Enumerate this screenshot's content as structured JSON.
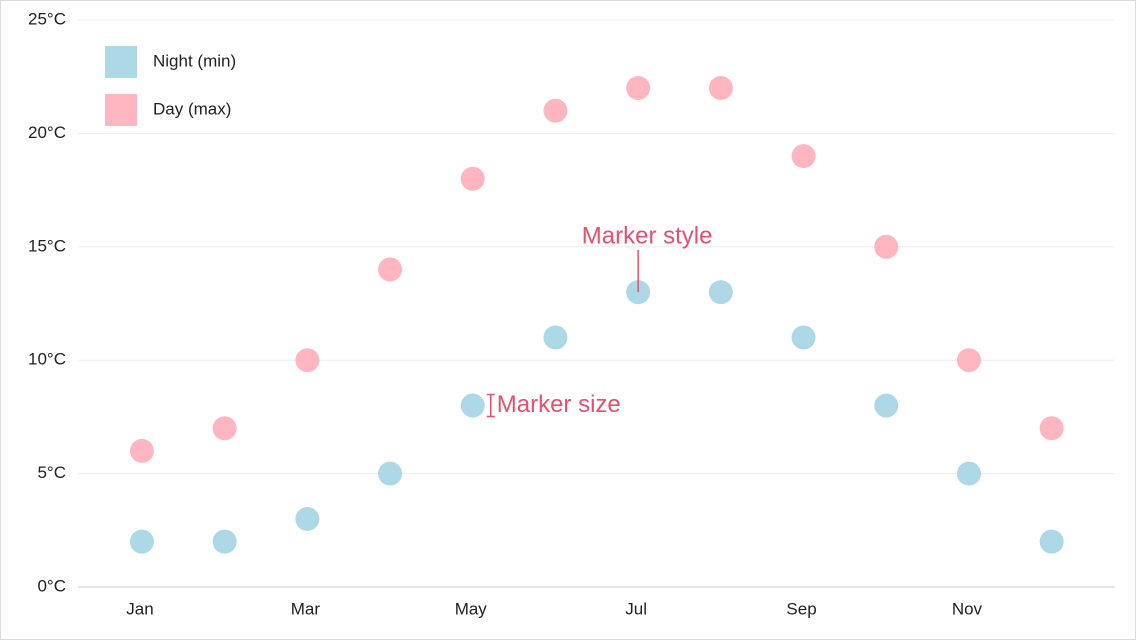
{
  "chart_data": {
    "type": "scatter",
    "categories": [
      "Jan",
      null,
      "Mar",
      null,
      "May",
      null,
      "Jul",
      null,
      "Sep",
      null,
      "Nov",
      null
    ],
    "series": [
      {
        "name": "Night (min)",
        "color": "#add8e6",
        "values": [
          2,
          2,
          3,
          5,
          8,
          11,
          13,
          13,
          11,
          8,
          5,
          2
        ]
      },
      {
        "name": "Day (max)",
        "color": "#ffb6c1",
        "values": [
          6,
          7,
          10,
          14,
          18,
          21,
          22,
          22,
          19,
          15,
          10,
          7
        ]
      }
    ],
    "ylim": [
      0,
      25
    ],
    "yticks": [
      {
        "value": 0,
        "label": "0°C"
      },
      {
        "value": 5,
        "label": "5°C"
      },
      {
        "value": 10,
        "label": "10°C"
      },
      {
        "value": 15,
        "label": "15°C"
      },
      {
        "value": 20,
        "label": "20°C"
      },
      {
        "value": 25,
        "label": "25°C"
      }
    ],
    "grid": true,
    "legend": "top-left",
    "annotations": [
      "Marker style",
      "Marker size"
    ],
    "annotation_color": "#e8506e"
  }
}
